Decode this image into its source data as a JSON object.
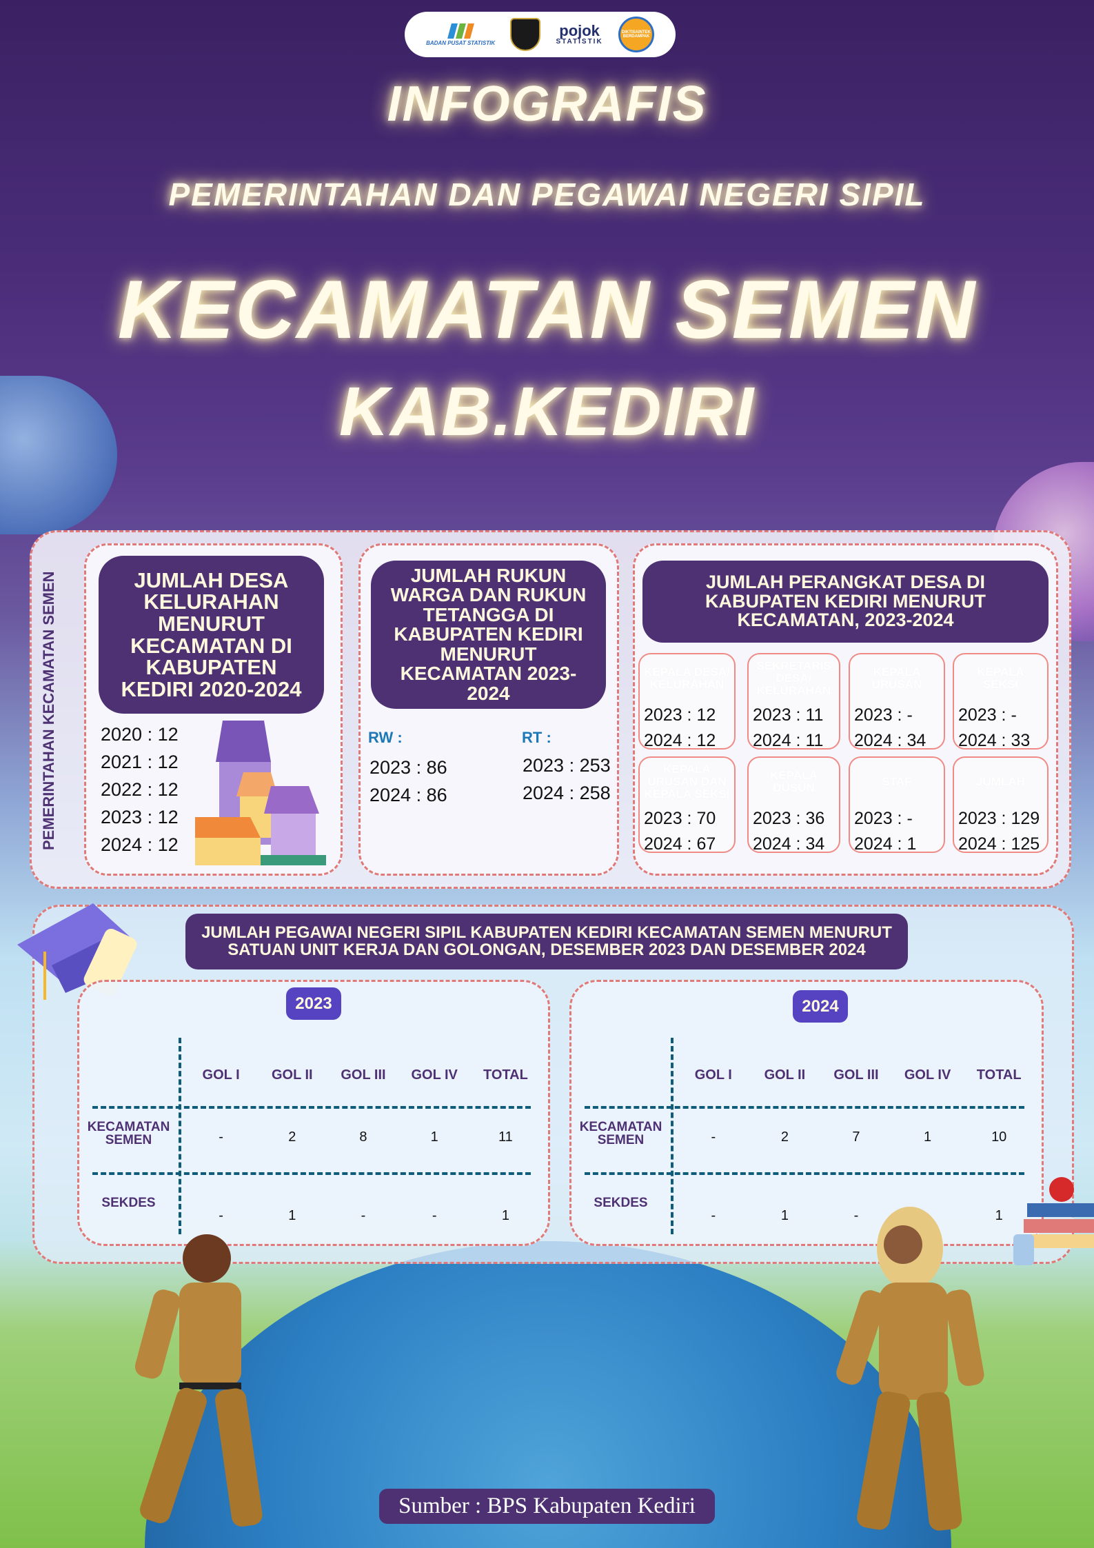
{
  "logos": {
    "bps": "BADAN PUSAT STATISTIK",
    "pojok_top": "pojok",
    "pojok_bottom": "STATISTIK",
    "dikti": "DIKTISAINTEK BERDAMPAK",
    "uniska": "UNISKA"
  },
  "title": {
    "line1": "INFOGRAFIS",
    "line2": "PEMERINTAHAN DAN PEGAWAI NEGERI SIPIL",
    "line3": "KECAMATAN SEMEN",
    "line4": "KAB.KEDIRI"
  },
  "section_side_label": "PEMERINTAHAN KECAMATAN SEMEN",
  "desa": {
    "title": "JUMLAH DESA KELURAHAN MENURUT KECAMATAN DI KABUPATEN KEDIRI 2020-2024",
    "items": [
      "2020 : 12",
      "2021 : 12",
      "2022 : 12",
      "2023 : 12",
      "2024 : 12"
    ]
  },
  "rw_rt": {
    "title": "JUMLAH RUKUN WARGA DAN RUKUN TETANGGA DI KABUPATEN KEDIRI MENURUT KECAMATAN 2023-2024",
    "rw_label": "RW :",
    "rt_label": "RT :",
    "rw": [
      "2023 : 86",
      "2024 : 86"
    ],
    "rt": [
      "2023 : 253",
      "2024 : 258"
    ]
  },
  "perangkat": {
    "title": "JUMLAH PERANGKAT DESA DI KABUPATEN KEDIRI MENURUT KECAMATAN, 2023-2024",
    "cards": [
      {
        "label": "KEPALA DESA/ KELURAHAN",
        "v2023": "2023 : 12",
        "v2024": "2024 : 12"
      },
      {
        "label": "SEKRETARIS DESA/ KELURAHAN",
        "v2023": "2023 : 11",
        "v2024": "2024 : 11"
      },
      {
        "label": "KEPALA URUSAN",
        "v2023": "2023 : -",
        "v2024": "2024 : 34"
      },
      {
        "label": "KEPALA SEKSI",
        "v2023": "2023 : -",
        "v2024": "2024 : 33"
      },
      {
        "label": "KEPALA URUSAN DAN KEPALA SEKSI",
        "v2023": "2023 : 70",
        "v2024": "2024 : 67"
      },
      {
        "label": "KEPALA DUSUN",
        "v2023": "2023 : 36",
        "v2024": "2024 : 34"
      },
      {
        "label": "STAF",
        "v2023": "2023 : -",
        "v2024": "2024 : 1"
      },
      {
        "label": "JUMLAH",
        "v2023": "2023 : 129",
        "v2024": "2024 : 125"
      }
    ]
  },
  "pns": {
    "title": "JUMLAH PEGAWAI NEGERI SIPIL KABUPATEN KEDIRI KECAMATAN SEMEN MENURUT SATUAN UNIT KERJA DAN GOLONGAN, DESEMBER 2023 DAN DESEMBER 2024",
    "columns": [
      "GOL I",
      "GOL II",
      "GOL III",
      "GOL IV",
      "TOTAL"
    ],
    "tables": [
      {
        "year": "2023",
        "rows": [
          {
            "label": "KECAMATAN SEMEN",
            "values": [
              "-",
              "2",
              "8",
              "1",
              "11"
            ]
          },
          {
            "label": "SEKDES",
            "values": [
              "-",
              "1",
              "-",
              "-",
              "1"
            ]
          }
        ]
      },
      {
        "year": "2024",
        "rows": [
          {
            "label": "KECAMATAN SEMEN",
            "values": [
              "-",
              "2",
              "7",
              "1",
              "10"
            ]
          },
          {
            "label": "SEKDES",
            "values": [
              "-",
              "1",
              "-",
              "-",
              "1"
            ]
          }
        ]
      }
    ]
  },
  "source": "Sumber : BPS  Kabupaten Kediri",
  "colors": {
    "purple": "#4e3173",
    "badge": "#5643c1",
    "dash_red": "#e07a78",
    "dash_teal": "#0e5c7a",
    "rw_blue": "#1c78b6"
  }
}
